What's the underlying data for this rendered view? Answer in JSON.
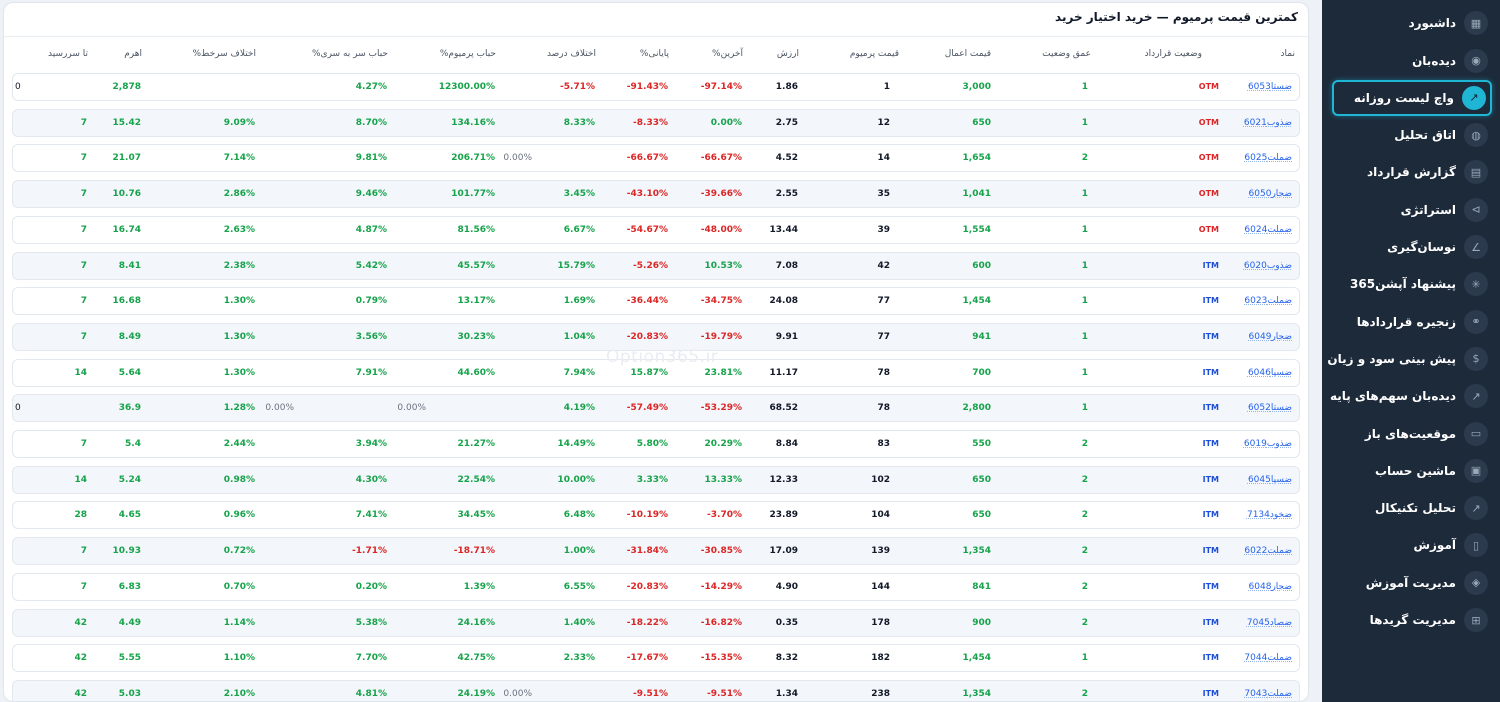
{
  "header": {
    "title": "کمترین قیمت پرمیوم — خرید اختیار خرید"
  },
  "watermark": "Option365.ir",
  "sidebar": {
    "items": [
      {
        "label": "داشبورد",
        "icon": "grid-icon",
        "glyph": "▦",
        "active": false
      },
      {
        "label": "دیده‌بان",
        "icon": "eye-icon",
        "glyph": "◉",
        "active": false
      },
      {
        "label": "واچ لیست روزانه",
        "icon": "chart-up-icon",
        "glyph": "↗",
        "active": true
      },
      {
        "label": "اتاق تحلیل",
        "icon": "globe-icon",
        "glyph": "◍",
        "active": false
      },
      {
        "label": "گزارش قرارداد",
        "icon": "document-icon",
        "glyph": "▤",
        "active": false
      },
      {
        "label": "استراتژی",
        "icon": "strategy-icon",
        "glyph": "⊳",
        "active": false
      },
      {
        "label": "نوسان‌گیری",
        "icon": "trend-icon",
        "glyph": "∠",
        "active": false
      },
      {
        "label": "پیشنهاد آپشن365",
        "icon": "sparkle-icon",
        "glyph": "✳",
        "active": false
      },
      {
        "label": "زنجیره قراردادها",
        "icon": "link-icon",
        "glyph": "⚭",
        "active": false
      },
      {
        "label": "پیش بینی سود و زیان",
        "icon": "dollar-icon",
        "glyph": "$",
        "active": false
      },
      {
        "label": "دیده‌بان سهم‌های پایه",
        "icon": "line-chart-icon",
        "glyph": "↗",
        "active": false
      },
      {
        "label": "موقعیت‌های باز",
        "icon": "list-icon",
        "glyph": "▭",
        "active": false
      },
      {
        "label": "ماشین حساب",
        "icon": "calculator-icon",
        "glyph": "▣",
        "active": false
      },
      {
        "label": "تحلیل تکنیکال",
        "icon": "analysis-icon",
        "glyph": "↗",
        "active": false
      },
      {
        "label": "آموزش",
        "icon": "book-icon",
        "glyph": "▯",
        "active": false
      },
      {
        "label": "مدیریت آموزش",
        "icon": "layers-icon",
        "glyph": "◈",
        "active": false
      },
      {
        "label": "مدیریت گریدها",
        "icon": "grid-add-icon",
        "glyph": "⊞",
        "active": false
      }
    ]
  },
  "table": {
    "columns": {
      "symbol": "نماد",
      "status": "وضعیت قرارداد",
      "depth": "عمق وضعیت",
      "strike": "قیمت اعمال",
      "premium": "قیمت پرمیوم",
      "value": "ارزش",
      "last_pct": "%آخرین",
      "close_pct": "%پایانی",
      "diff_pct": "اختلاف درصد",
      "premium_bubble": "%حباب پرمیوم",
      "breakeven_bubble": "%حباب سر به سری",
      "margin_diff": "%اختلاف سرخط",
      "leverage": "اهرم",
      "days": "تا سررسید"
    },
    "rows": [
      {
        "symbol": "ضستا6053",
        "status": "OTM",
        "depth": "1",
        "strike": "3,000",
        "premium": "1",
        "value": "1.86",
        "last_pct": "-97.14%",
        "close_pct": "-91.43%",
        "diff_pct": "-5.71%",
        "diff_pct_extra": "",
        "premium_bubble": "12300.00%",
        "premium_bubble_extra": "",
        "breakeven_bubble": "4.27%",
        "breakeven_bubble_extra": "",
        "margin_diff": "",
        "margin_diff_extra": "",
        "leverage": "2,878",
        "days": "0"
      },
      {
        "symbol": "ضذوب6021",
        "status": "OTM",
        "depth": "1",
        "strike": "650",
        "premium": "12",
        "value": "2.75",
        "last_pct": "0.00%",
        "close_pct": "-8.33%",
        "diff_pct": "8.33%",
        "diff_pct_extra": "",
        "premium_bubble": "134.16%",
        "premium_bubble_extra": "",
        "breakeven_bubble": "8.70%",
        "breakeven_bubble_extra": "",
        "margin_diff": "9.09%",
        "margin_diff_extra": "",
        "leverage": "15.42",
        "days": "7"
      },
      {
        "symbol": "ضملت6025",
        "status": "OTM",
        "depth": "2",
        "strike": "1,654",
        "premium": "14",
        "value": "4.52",
        "last_pct": "-66.67%",
        "close_pct": "-66.67%",
        "diff_pct": "",
        "diff_pct_extra": "0.00%",
        "premium_bubble": "206.71%",
        "premium_bubble_extra": "",
        "breakeven_bubble": "9.81%",
        "breakeven_bubble_extra": "",
        "margin_diff": "7.14%",
        "margin_diff_extra": "",
        "leverage": "21.07",
        "days": "7"
      },
      {
        "symbol": "ضجار6050",
        "status": "OTM",
        "depth": "1",
        "strike": "1,041",
        "premium": "35",
        "value": "2.55",
        "last_pct": "-39.66%",
        "close_pct": "-43.10%",
        "diff_pct": "3.45%",
        "diff_pct_extra": "",
        "premium_bubble": "101.77%",
        "premium_bubble_extra": "",
        "breakeven_bubble": "9.46%",
        "breakeven_bubble_extra": "",
        "margin_diff": "2.86%",
        "margin_diff_extra": "",
        "leverage": "10.76",
        "days": "7"
      },
      {
        "symbol": "ضملت6024",
        "status": "OTM",
        "depth": "1",
        "strike": "1,554",
        "premium": "39",
        "value": "13.44",
        "last_pct": "-48.00%",
        "close_pct": "-54.67%",
        "diff_pct": "6.67%",
        "diff_pct_extra": "",
        "premium_bubble": "81.56%",
        "premium_bubble_extra": "",
        "breakeven_bubble": "4.87%",
        "breakeven_bubble_extra": "",
        "margin_diff": "2.63%",
        "margin_diff_extra": "",
        "leverage": "16.74",
        "days": "7"
      },
      {
        "symbol": "ضذوب6020",
        "status": "ITM",
        "depth": "1",
        "strike": "600",
        "premium": "42",
        "value": "7.08",
        "last_pct": "10.53%",
        "close_pct": "-5.26%",
        "diff_pct": "15.79%",
        "diff_pct_extra": "",
        "premium_bubble": "45.57%",
        "premium_bubble_extra": "",
        "breakeven_bubble": "5.42%",
        "breakeven_bubble_extra": "",
        "margin_diff": "2.38%",
        "margin_diff_extra": "",
        "leverage": "8.41",
        "days": "7"
      },
      {
        "symbol": "ضملت6023",
        "status": "ITM",
        "depth": "1",
        "strike": "1,454",
        "premium": "77",
        "value": "24.08",
        "last_pct": "-34.75%",
        "close_pct": "-36.44%",
        "diff_pct": "1.69%",
        "diff_pct_extra": "",
        "premium_bubble": "13.17%",
        "premium_bubble_extra": "",
        "breakeven_bubble": "0.79%",
        "breakeven_bubble_extra": "",
        "margin_diff": "1.30%",
        "margin_diff_extra": "",
        "leverage": "16.68",
        "days": "7"
      },
      {
        "symbol": "ضجار6049",
        "status": "ITM",
        "depth": "1",
        "strike": "941",
        "premium": "77",
        "value": "9.91",
        "last_pct": "-19.79%",
        "close_pct": "-20.83%",
        "diff_pct": "1.04%",
        "diff_pct_extra": "",
        "premium_bubble": "30.23%",
        "premium_bubble_extra": "",
        "breakeven_bubble": "3.56%",
        "breakeven_bubble_extra": "",
        "margin_diff": "1.30%",
        "margin_diff_extra": "",
        "leverage": "8.49",
        "days": "7"
      },
      {
        "symbol": "ضسپا6046",
        "status": "ITM",
        "depth": "1",
        "strike": "700",
        "premium": "78",
        "value": "11.17",
        "last_pct": "23.81%",
        "close_pct": "15.87%",
        "diff_pct": "7.94%",
        "diff_pct_extra": "",
        "premium_bubble": "44.60%",
        "premium_bubble_extra": "",
        "breakeven_bubble": "7.91%",
        "breakeven_bubble_extra": "",
        "margin_diff": "1.30%",
        "margin_diff_extra": "",
        "leverage": "5.64",
        "days": "14"
      },
      {
        "symbol": "ضستا6052",
        "status": "ITM",
        "depth": "1",
        "strike": "2,800",
        "premium": "78",
        "value": "68.52",
        "last_pct": "-53.29%",
        "close_pct": "-57.49%",
        "diff_pct": "4.19%",
        "diff_pct_extra": "",
        "premium_bubble": "",
        "premium_bubble_extra": "0.00%",
        "breakeven_bubble": "",
        "breakeven_bubble_extra": "0.00%",
        "margin_diff": "1.28%",
        "margin_diff_extra": "",
        "leverage": "36.9",
        "days": "0"
      },
      {
        "symbol": "ضذوب6019",
        "status": "ITM",
        "depth": "2",
        "strike": "550",
        "premium": "83",
        "value": "8.84",
        "last_pct": "20.29%",
        "close_pct": "5.80%",
        "diff_pct": "14.49%",
        "diff_pct_extra": "",
        "premium_bubble": "21.27%",
        "premium_bubble_extra": "",
        "breakeven_bubble": "3.94%",
        "breakeven_bubble_extra": "",
        "margin_diff": "2.44%",
        "margin_diff_extra": "",
        "leverage": "5.4",
        "days": "7"
      },
      {
        "symbol": "ضسپا6045",
        "status": "ITM",
        "depth": "2",
        "strike": "650",
        "premium": "102",
        "value": "12.33",
        "last_pct": "13.33%",
        "close_pct": "3.33%",
        "diff_pct": "10.00%",
        "diff_pct_extra": "",
        "premium_bubble": "22.54%",
        "premium_bubble_extra": "",
        "breakeven_bubble": "4.30%",
        "breakeven_bubble_extra": "",
        "margin_diff": "0.98%",
        "margin_diff_extra": "",
        "leverage": "5.24",
        "days": "14"
      },
      {
        "symbol": "ضخود7134",
        "status": "ITM",
        "depth": "2",
        "strike": "650",
        "premium": "104",
        "value": "23.89",
        "last_pct": "-3.70%",
        "close_pct": "-10.19%",
        "diff_pct": "6.48%",
        "diff_pct_extra": "",
        "premium_bubble": "34.45%",
        "premium_bubble_extra": "",
        "breakeven_bubble": "7.41%",
        "breakeven_bubble_extra": "",
        "margin_diff": "0.96%",
        "margin_diff_extra": "",
        "leverage": "4.65",
        "days": "28"
      },
      {
        "symbol": "ضملت6022",
        "status": "ITM",
        "depth": "2",
        "strike": "1,354",
        "premium": "139",
        "value": "17.09",
        "last_pct": "-30.85%",
        "close_pct": "-31.84%",
        "diff_pct": "1.00%",
        "diff_pct_extra": "",
        "premium_bubble": "-18.71%",
        "premium_bubble_extra": "",
        "breakeven_bubble": "-1.71%",
        "breakeven_bubble_extra": "",
        "margin_diff": "0.72%",
        "margin_diff_extra": "",
        "leverage": "10.93",
        "days": "7"
      },
      {
        "symbol": "ضجار6048",
        "status": "ITM",
        "depth": "2",
        "strike": "841",
        "premium": "144",
        "value": "4.90",
        "last_pct": "-14.29%",
        "close_pct": "-20.83%",
        "diff_pct": "6.55%",
        "diff_pct_extra": "",
        "premium_bubble": "1.39%",
        "premium_bubble_extra": "",
        "breakeven_bubble": "0.20%",
        "breakeven_bubble_extra": "",
        "margin_diff": "0.70%",
        "margin_diff_extra": "",
        "leverage": "6.83",
        "days": "7"
      },
      {
        "symbol": "ضصاد7045",
        "status": "ITM",
        "depth": "2",
        "strike": "900",
        "premium": "178",
        "value": "0.35",
        "last_pct": "-16.82%",
        "close_pct": "-18.22%",
        "diff_pct": "1.40%",
        "diff_pct_extra": "",
        "premium_bubble": "24.16%",
        "premium_bubble_extra": "",
        "breakeven_bubble": "5.38%",
        "breakeven_bubble_extra": "",
        "margin_diff": "1.14%",
        "margin_diff_extra": "",
        "leverage": "4.49",
        "days": "42"
      },
      {
        "symbol": "ضملت7044",
        "status": "ITM",
        "depth": "1",
        "strike": "1,454",
        "premium": "182",
        "value": "8.32",
        "last_pct": "-15.35%",
        "close_pct": "-17.67%",
        "diff_pct": "2.33%",
        "diff_pct_extra": "",
        "premium_bubble": "42.75%",
        "premium_bubble_extra": "",
        "breakeven_bubble": "7.70%",
        "breakeven_bubble_extra": "",
        "margin_diff": "1.10%",
        "margin_diff_extra": "",
        "leverage": "5.55",
        "days": "42"
      },
      {
        "symbol": "ضملت7043",
        "status": "ITM",
        "depth": "2",
        "strike": "1,354",
        "premium": "238",
        "value": "1.34",
        "last_pct": "-9.51%",
        "close_pct": "-9.51%",
        "diff_pct": "",
        "diff_pct_extra": "0.00%",
        "premium_bubble": "24.19%",
        "premium_bubble_extra": "",
        "breakeven_bubble": "4.81%",
        "breakeven_bubble_extra": "",
        "margin_diff": "2.10%",
        "margin_diff_extra": "",
        "leverage": "5.03",
        "days": "42"
      }
    ]
  },
  "colors": {
    "positive": "#16a34a",
    "negative": "#dc2626",
    "otm": "#dc2626",
    "itm": "#1d4ed8",
    "symbol_link": "#2563eb",
    "sidebar_bg": "#1d2a3a",
    "active_accent": "#1fb6d5"
  }
}
